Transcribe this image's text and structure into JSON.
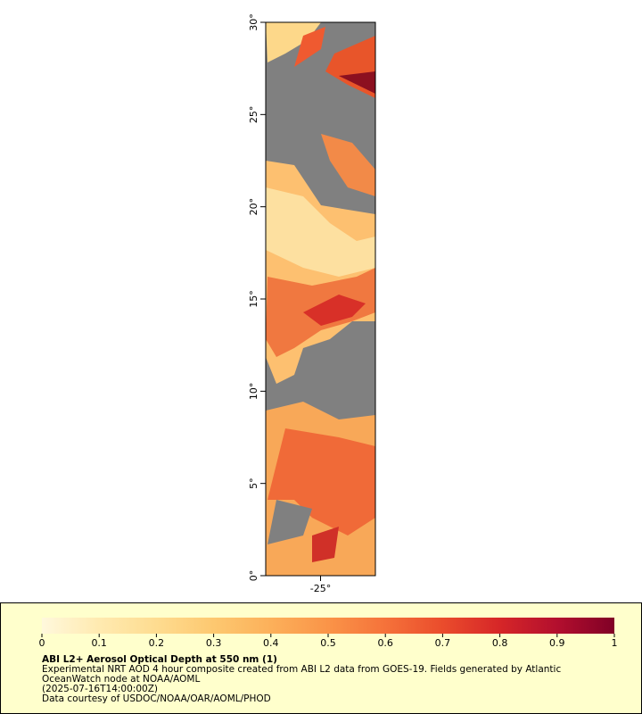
{
  "map": {
    "xlim": [
      -26.5,
      -23.5
    ],
    "ylim": [
      0,
      30
    ],
    "xticks": [
      {
        "value": -25,
        "label": "-25°"
      }
    ],
    "yticks": [
      {
        "value": 0,
        "label": "0°"
      },
      {
        "value": 5,
        "label": "5°"
      },
      {
        "value": 10,
        "label": "10°"
      },
      {
        "value": 15,
        "label": "15°"
      },
      {
        "value": 20,
        "label": "20°"
      },
      {
        "value": 25,
        "label": "25°"
      },
      {
        "value": 30,
        "label": "30°"
      }
    ]
  },
  "legend": {
    "title": "ABI L2+ Aerosol Optical Depth at 550 nm (1)",
    "lines": [
      "Experimental NRT AOD 4 hour composite created from ABI L2 data from GOES-19. Fields generated by Atlantic",
      "OceanWatch node at NOAA/AOML",
      "(2025-07-16T14:00:00Z)",
      "Data courtesy of USDOC/NOAA/OAR/AOML/PHOD"
    ],
    "colorbar": {
      "range": [
        0,
        1
      ],
      "ticks": [
        0,
        0.1,
        0.2,
        0.3,
        0.4,
        0.5,
        0.6,
        0.7,
        0.8,
        0.9,
        1
      ],
      "colors": [
        "#fff8dc",
        "#ffeab0",
        "#fedc90",
        "#fdc870",
        "#fcb05a",
        "#fa9448",
        "#f5723a",
        "#ea4c2c",
        "#d62628",
        "#b30f2e",
        "#800026"
      ]
    }
  }
}
